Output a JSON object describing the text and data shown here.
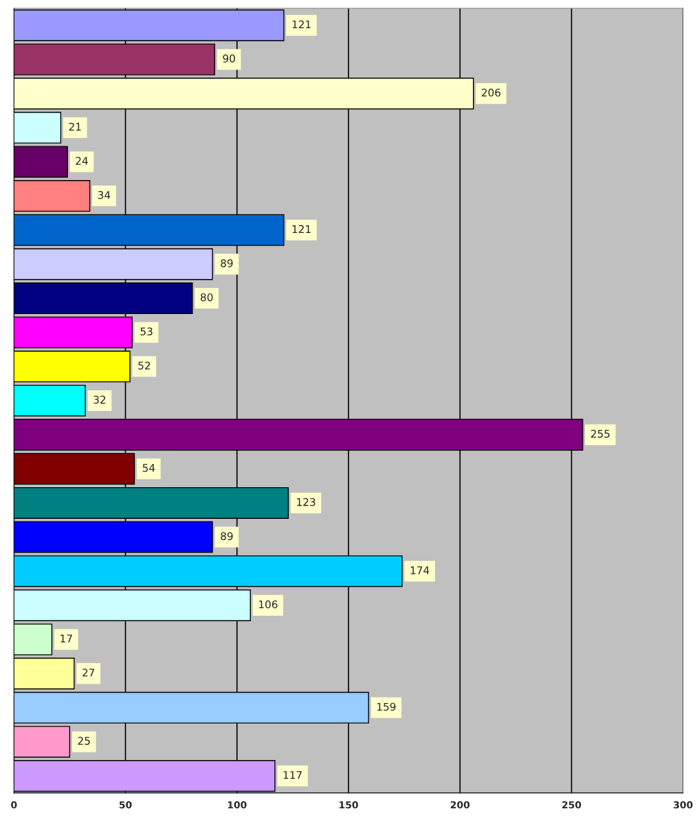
{
  "chart_data": {
    "type": "bar",
    "orientation": "horizontal",
    "categories": [
      null,
      null,
      null,
      null,
      null,
      null,
      null,
      null,
      null,
      null,
      null,
      null,
      null,
      null,
      null,
      null,
      null,
      null,
      null,
      null,
      null,
      null,
      null
    ],
    "values": [
      121,
      90,
      206,
      21,
      24,
      34,
      121,
      89,
      80,
      53,
      52,
      32,
      255,
      54,
      123,
      89,
      174,
      106,
      17,
      27,
      159,
      25,
      117
    ],
    "colors": [
      "#9999ff",
      "#993366",
      "#ffffcc",
      "#ccffff",
      "#660066",
      "#ff8080",
      "#0066cc",
      "#ccccff",
      "#000080",
      "#ff00ff",
      "#ffff00",
      "#00ffff",
      "#800080",
      "#800000",
      "#008080",
      "#0000ff",
      "#00ccff",
      "#ccffff",
      "#ccffcc",
      "#ffff99",
      "#99ccff",
      "#ff99cc",
      "#cc99ff"
    ],
    "xlim": [
      0,
      300
    ],
    "xticks": [
      0,
      50,
      100,
      150,
      200,
      250,
      300
    ],
    "grid": "x",
    "data_labels": true,
    "tick_labels": "x"
  }
}
